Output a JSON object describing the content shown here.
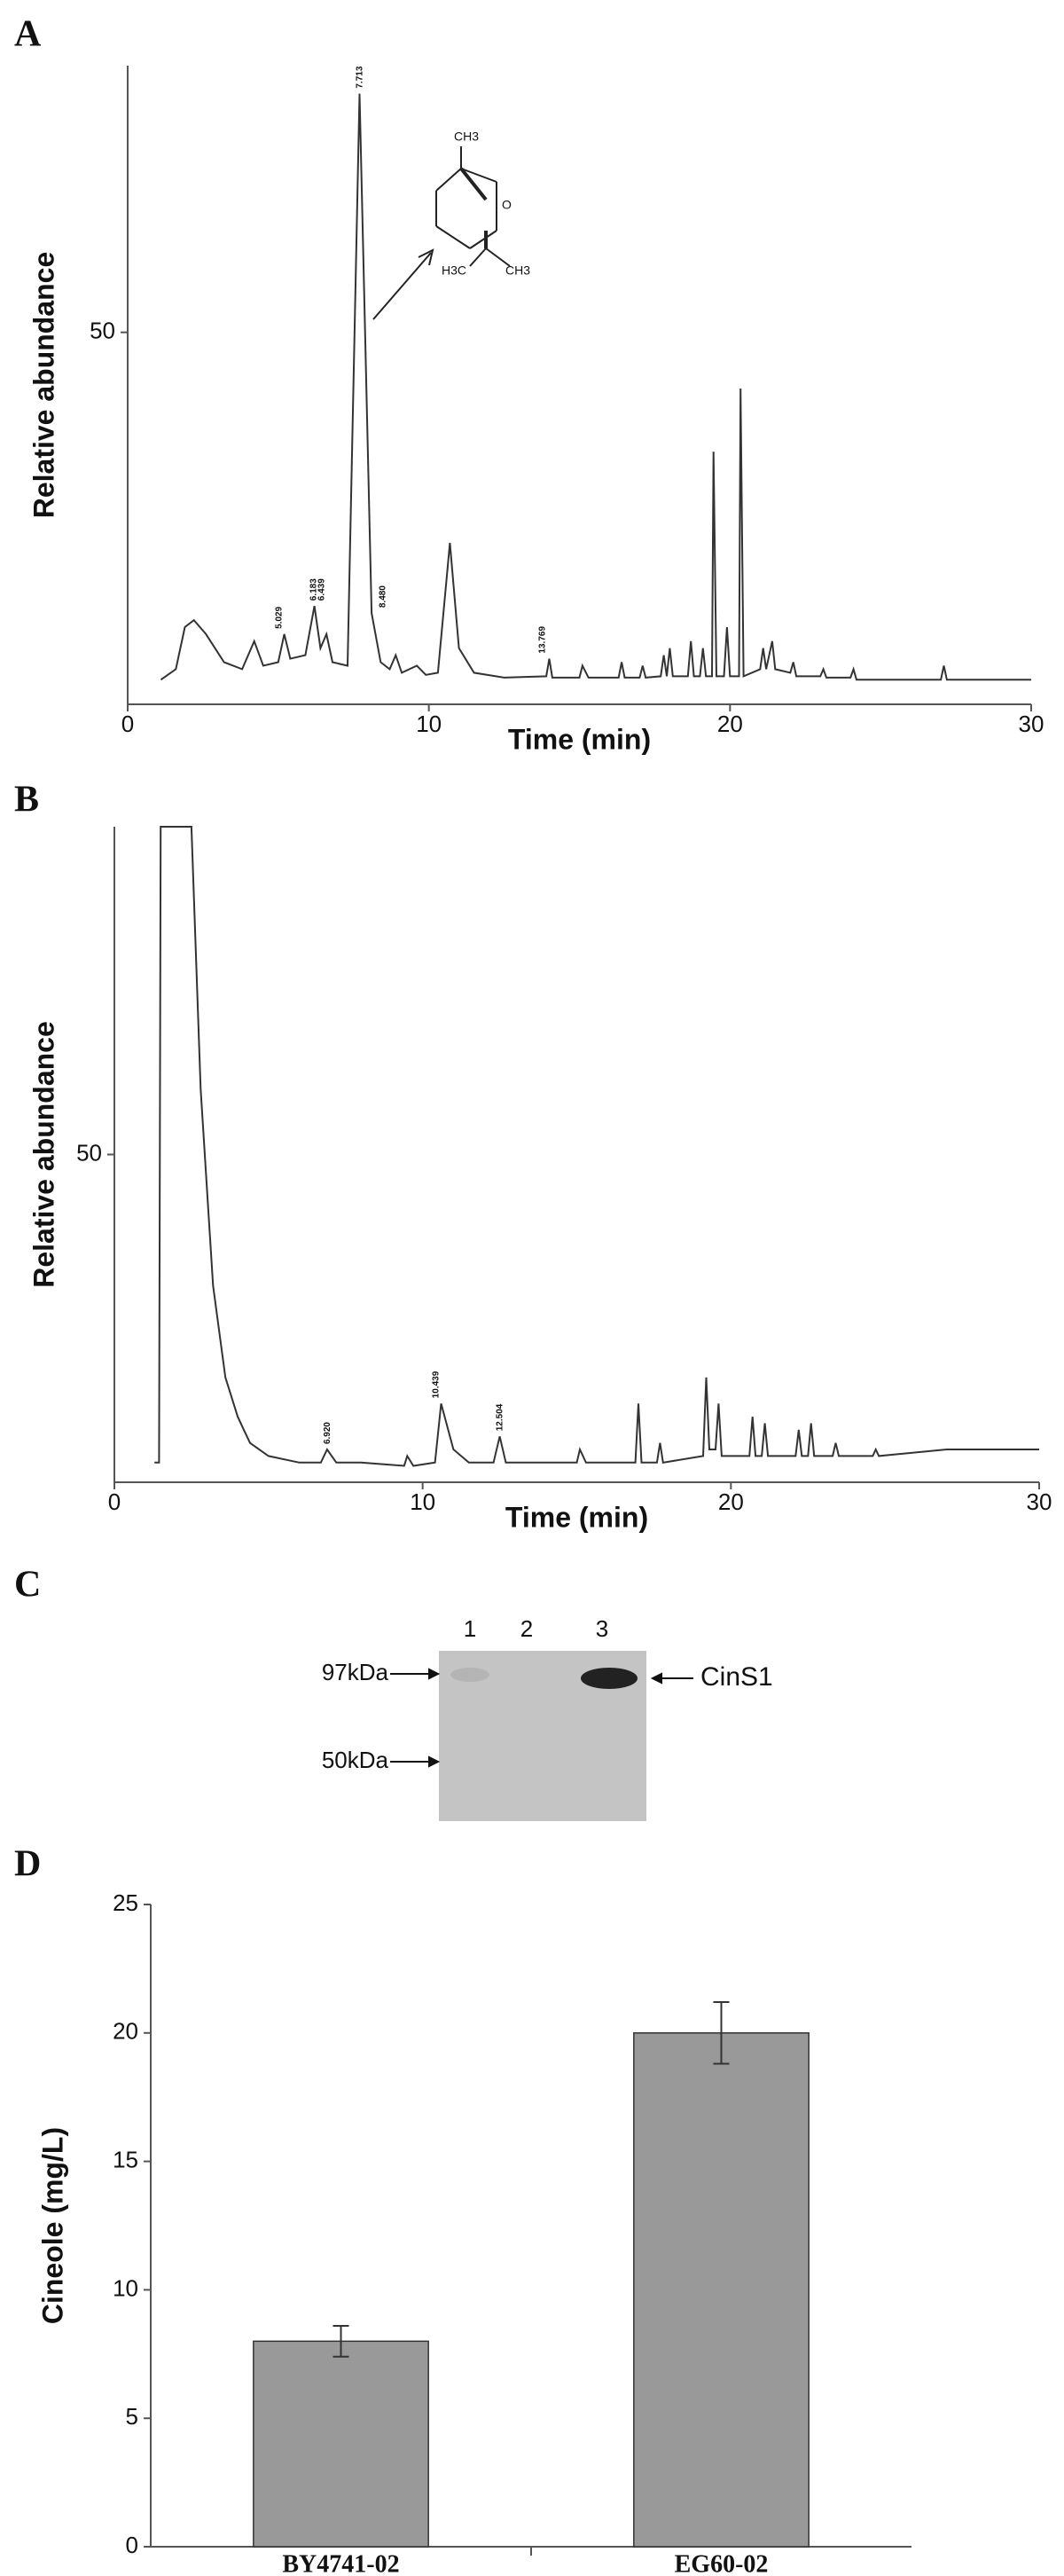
{
  "chart_data": [
    {
      "type": "line",
      "label": "A",
      "x_label": "Time (min)",
      "y_label": "Relative abundance",
      "color": "#333333",
      "xlim": [
        0,
        30
      ],
      "ylim": [
        -3,
        88
      ],
      "xticks": [
        0,
        10,
        20,
        30
      ],
      "yticks": [
        50
      ],
      "x": [
        1.1,
        1.6,
        1.9,
        2.2,
        2.6,
        3.2,
        3.8,
        4.2,
        4.5,
        5.0,
        5.2,
        5.4,
        5.9,
        6.2,
        6.4,
        6.6,
        6.8,
        7.3,
        7.7,
        8.1,
        8.4,
        8.7,
        8.9,
        9.1,
        9.6,
        9.9,
        10.3,
        10.7,
        11.0,
        11.5,
        12.5,
        13.9,
        14.0,
        14.1,
        15.0,
        15.1,
        15.3,
        16.3,
        16.4,
        16.5,
        17.0,
        17.1,
        17.2,
        17.7,
        17.8,
        17.9,
        18.0,
        18.1,
        18.6,
        18.7,
        18.8,
        19.0,
        19.1,
        19.2,
        19.4,
        19.45,
        19.55,
        19.8,
        19.9,
        20.0,
        20.3,
        20.35,
        20.45,
        21.0,
        21.1,
        21.2,
        21.4,
        21.5,
        22.0,
        22.1,
        22.2,
        23.0,
        23.1,
        23.2,
        24.0,
        24.1,
        24.2,
        27.0,
        27.1,
        27.2,
        30
      ],
      "values": [
        0.5,
        2,
        8,
        9,
        7,
        3,
        2,
        6,
        2.5,
        3,
        7,
        3.5,
        4,
        11,
        5,
        7,
        3,
        2.5,
        84,
        10,
        3,
        2,
        4,
        1.5,
        2.5,
        1.2,
        1.5,
        20,
        5,
        1.5,
        0.8,
        1,
        3.5,
        0.8,
        0.8,
        2.5,
        0.8,
        0.8,
        3,
        0.8,
        0.8,
        2.5,
        0.8,
        1,
        4,
        1,
        5,
        1,
        1,
        6,
        1,
        1,
        5,
        1,
        1,
        33,
        1,
        1,
        8,
        1,
        1,
        42,
        1,
        2,
        5,
        2,
        6,
        2,
        1.5,
        3,
        1,
        1,
        2,
        0.8,
        0.8,
        2,
        0.5,
        0.5,
        2.5,
        0.5,
        0.5
      ],
      "annotations": [
        "5.029",
        "6.183",
        "6.439",
        "7.713",
        "8.480",
        "13.769"
      ],
      "structure_labels": [
        "CH3",
        "O",
        "H3C",
        "CH3"
      ]
    },
    {
      "type": "line",
      "label": "B",
      "x_label": "Time (min)",
      "y_label": "Relative abundance",
      "color": "#333333",
      "xlim": [
        0,
        30
      ],
      "ylim": [
        0,
        100
      ],
      "xticks": [
        0,
        10,
        20,
        30
      ],
      "yticks": [
        50
      ],
      "x": [
        1.3,
        1.45,
        1.5,
        2.5,
        2.8,
        3.2,
        3.6,
        4.0,
        4.2,
        4.4,
        5,
        6,
        6.7,
        6.9,
        7.2,
        8,
        9.4,
        9.5,
        9.7,
        10.4,
        10.6,
        11,
        11.5,
        12.3,
        12.5,
        12.7,
        15,
        15.1,
        15.3,
        16.9,
        17.0,
        17.1,
        17.6,
        17.7,
        17.8,
        19.1,
        19.2,
        19.3,
        19.5,
        19.6,
        19.7,
        20.6,
        20.7,
        20.8,
        21.0,
        21.1,
        21.2,
        22.1,
        22.2,
        22.3,
        22.5,
        22.6,
        22.7,
        23.3,
        23.4,
        23.5,
        24.6,
        24.7,
        24.8,
        27,
        30
      ],
      "values": [
        3,
        3,
        100,
        100,
        60,
        30,
        16,
        10,
        8,
        6,
        4,
        3,
        3,
        5,
        3,
        3,
        2.5,
        4,
        2.5,
        3,
        12,
        5,
        3,
        3,
        7,
        3,
        3,
        5,
        3,
        3,
        12,
        3,
        3,
        6,
        3,
        4,
        16,
        5,
        5,
        12,
        4,
        4,
        10,
        4,
        4,
        9,
        4,
        4,
        8,
        4,
        4,
        9,
        4,
        4,
        6,
        4,
        4,
        5,
        4,
        5,
        5
      ],
      "annotations": [
        "6.920",
        "10.439",
        "12.504"
      ]
    },
    {
      "type": "bar",
      "label": "D",
      "y_label": "Cineole (mg/L)",
      "color": "#999999",
      "categories": [
        "BY4741-02",
        "EG60-02"
      ],
      "values": [
        8,
        20
      ],
      "errors": [
        0.6,
        1.2
      ],
      "ylim": [
        0,
        25
      ],
      "yticks": [
        0,
        5,
        10,
        15,
        20,
        25
      ]
    }
  ],
  "gel": {
    "label": "C",
    "lanes": [
      "1",
      "2",
      "3"
    ],
    "markers": [
      "97kDa",
      "50kDa"
    ],
    "band_label": "CinS1"
  }
}
